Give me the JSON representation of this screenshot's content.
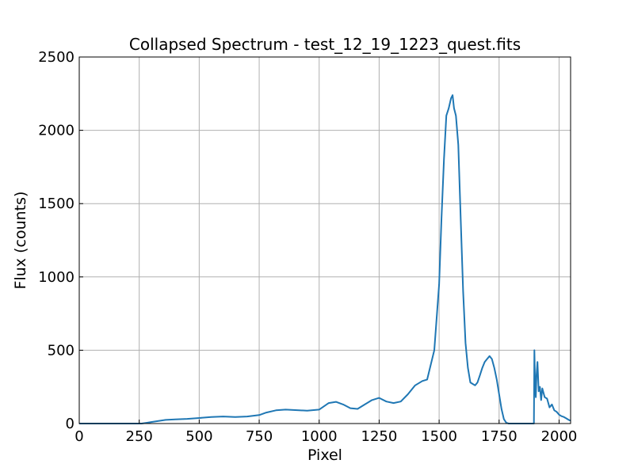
{
  "chart_data": {
    "type": "line",
    "title": "Collapsed Spectrum - test_12_19_1223_quest.fits",
    "xlabel": "Pixel",
    "ylabel": "Flux (counts)",
    "xlim": [
      0,
      2048
    ],
    "ylim": [
      0,
      2500
    ],
    "xticks": [
      0,
      250,
      500,
      750,
      1000,
      1250,
      1500,
      1750,
      2000
    ],
    "yticks": [
      0,
      500,
      1000,
      1500,
      2000,
      2500
    ],
    "grid": true,
    "line_color": "#1f77b4",
    "series": [
      {
        "x": [
          0,
          260,
          280,
          300,
          330,
          360,
          400,
          450,
          500,
          550,
          600,
          650,
          700,
          750,
          780,
          820,
          860,
          900,
          950,
          1000,
          1040,
          1070,
          1100,
          1130,
          1160,
          1190,
          1220,
          1250,
          1280,
          1310,
          1340,
          1370,
          1400,
          1430,
          1450,
          1480,
          1500,
          1510,
          1520,
          1530,
          1540,
          1550,
          1556,
          1562,
          1570,
          1580,
          1590,
          1600,
          1610,
          1620,
          1630,
          1640,
          1650,
          1660,
          1670,
          1680,
          1690,
          1700,
          1710,
          1720,
          1730,
          1740,
          1750,
          1760,
          1770,
          1780,
          1790,
          1800,
          1810,
          1820,
          1850,
          1895,
          1897,
          1900,
          1903,
          1906,
          1910,
          1915,
          1920,
          1925,
          1930,
          1940,
          1950,
          1960,
          1970,
          1980,
          1990,
          2000,
          2010,
          2020,
          2030,
          2040,
          2048
        ],
        "values": [
          0,
          0,
          5,
          10,
          18,
          25,
          28,
          32,
          38,
          45,
          48,
          45,
          48,
          58,
          75,
          90,
          95,
          92,
          88,
          95,
          140,
          148,
          130,
          105,
          100,
          130,
          160,
          175,
          150,
          140,
          150,
          200,
          260,
          290,
          300,
          500,
          950,
          1400,
          1800,
          2100,
          2150,
          2220,
          2240,
          2150,
          2100,
          1900,
          1400,
          900,
          550,
          380,
          280,
          270,
          260,
          280,
          330,
          380,
          420,
          440,
          460,
          440,
          380,
          300,
          200,
          100,
          30,
          5,
          0,
          0,
          0,
          0,
          0,
          0,
          500,
          260,
          180,
          330,
          420,
          220,
          250,
          160,
          240,
          180,
          170,
          110,
          130,
          90,
          80,
          60,
          50,
          45,
          35,
          25,
          20
        ]
      }
    ]
  }
}
